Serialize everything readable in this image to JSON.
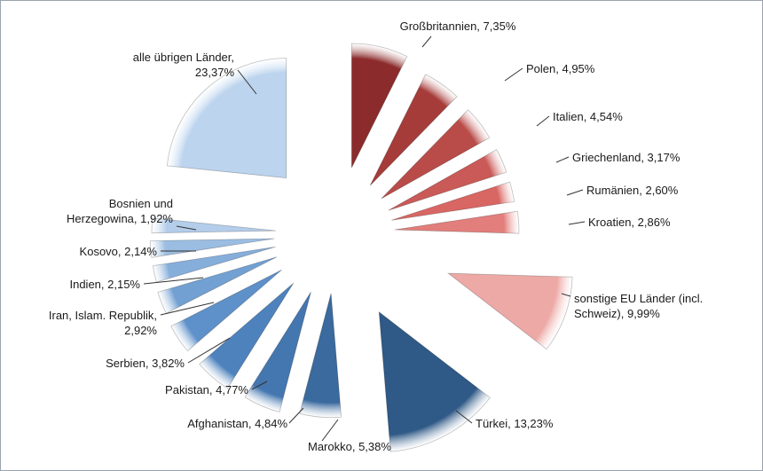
{
  "chart_data": {
    "type": "pie",
    "exploded": true,
    "labels_outside": true,
    "slices": [
      {
        "name": "Großbritannien",
        "value": 7.35,
        "value_label": "7,35%",
        "color": "#8c2b2b",
        "label_lines": [
          "Großbritannien, 7,35%"
        ]
      },
      {
        "name": "Polen",
        "value": 4.95,
        "value_label": "4,95%",
        "color": "#a63c3a",
        "label_lines": [
          "Polen, 4,95%"
        ]
      },
      {
        "name": "Italien",
        "value": 4.54,
        "value_label": "4,54%",
        "color": "#b94c49",
        "label_lines": [
          "Italien, 4,54%"
        ]
      },
      {
        "name": "Griechenland",
        "value": 3.17,
        "value_label": "3,17%",
        "color": "#c95a57",
        "label_lines": [
          "Griechenland, 3,17%"
        ]
      },
      {
        "name": "Rumänien",
        "value": 2.6,
        "value_label": "2,60%",
        "color": "#d86663",
        "label_lines": [
          "Rumänien, 2,60%"
        ]
      },
      {
        "name": "Kroatien",
        "value": 2.86,
        "value_label": "2,86%",
        "color": "#e27e7b",
        "label_lines": [
          "Kroatien, 2,86%"
        ]
      },
      {
        "name": "sonstige EU Länder (incl. Schweiz)",
        "value": 9.99,
        "value_label": "9,99%",
        "color": "#eda9a6",
        "label_lines": [
          "sonstige EU Länder (incl.",
          "Schweiz), 9,99%"
        ]
      },
      {
        "name": "Türkei",
        "value": 13.23,
        "value_label": "13,23%",
        "color": "#2f5986",
        "label_lines": [
          "Türkei, 13,23%"
        ]
      },
      {
        "name": "Marokko",
        "value": 5.38,
        "value_label": "5,38%",
        "color": "#3a6a9e",
        "label_lines": [
          "Marokko, 5,38%"
        ]
      },
      {
        "name": "Afghanistan",
        "value": 4.84,
        "value_label": "4,84%",
        "color": "#4477b0",
        "label_lines": [
          "Afghanistan, 4,84%"
        ]
      },
      {
        "name": "Pakistan",
        "value": 4.77,
        "value_label": "4,77%",
        "color": "#4e82bd",
        "label_lines": [
          "Pakistan, 4,77%"
        ]
      },
      {
        "name": "Serbien",
        "value": 3.82,
        "value_label": "3,82%",
        "color": "#5e90c9",
        "label_lines": [
          "Serbien, 3,82%"
        ]
      },
      {
        "name": "Iran, Islam. Republik",
        "value": 2.92,
        "value_label": "2,92%",
        "color": "#72a0d2",
        "label_lines": [
          "Iran, Islam. Republik,",
          "2,92%"
        ]
      },
      {
        "name": "Indien",
        "value": 2.15,
        "value_label": "2,15%",
        "color": "#86aedb",
        "label_lines": [
          "Indien, 2,15%"
        ]
      },
      {
        "name": "Kosovo",
        "value": 2.14,
        "value_label": "2,14%",
        "color": "#9bbde2",
        "label_lines": [
          "Kosovo, 2,14%"
        ]
      },
      {
        "name": "Bosnien und Herzegowina",
        "value": 1.92,
        "value_label": "1,92%",
        "color": "#b3cdea",
        "label_lines": [
          "Bosnien und",
          "Herzegowina, 1,92%"
        ]
      },
      {
        "name": "alle übrigen Länder",
        "value": 23.37,
        "value_label": "23,37%",
        "color": "#bcd4ee",
        "label_lines": [
          "alle übrigen Länder,",
          "23,37%"
        ]
      }
    ]
  }
}
